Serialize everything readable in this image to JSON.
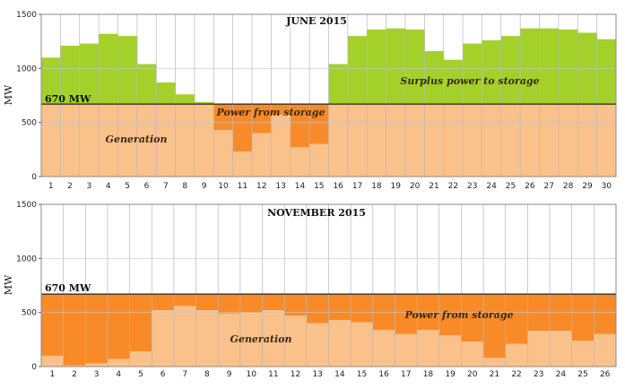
{
  "chart_data": [
    {
      "type": "bar",
      "title": "JUNE 2015",
      "ylabel": "MW",
      "xlabel": "",
      "ylim": [
        0,
        1500
      ],
      "yticks": [
        0,
        500,
        1000,
        1500
      ],
      "baseline_value": 670,
      "baseline_label": "670 MW",
      "categories": [
        "1",
        "2",
        "3",
        "4",
        "5",
        "6",
        "7",
        "8",
        "9",
        "10",
        "11",
        "12",
        "13",
        "14",
        "15",
        "16",
        "17",
        "18",
        "19",
        "20",
        "21",
        "22",
        "23",
        "24",
        "25",
        "26",
        "27",
        "28",
        "29",
        "30"
      ],
      "values": [
        1100,
        1210,
        1230,
        1320,
        1300,
        1040,
        870,
        760,
        690,
        430,
        230,
        400,
        570,
        270,
        300,
        1040,
        1300,
        1360,
        1370,
        1360,
        1160,
        1080,
        1230,
        1260,
        1300,
        1370,
        1370,
        1360,
        1330,
        1270
      ],
      "series_names": {
        "surplus": "Surplus power to storage",
        "storage": "Power from storage",
        "generation": "Generation"
      },
      "annotations": [
        "Surplus power to storage",
        "Power from storage",
        "Generation"
      ],
      "colors": {
        "surplus": "#a3d12a",
        "generation": "#fac18a",
        "storage": "#f98a28"
      }
    },
    {
      "type": "bar",
      "title": "NOVEMBER 2015",
      "ylabel": "MW",
      "xlabel": "",
      "ylim": [
        0,
        1500
      ],
      "yticks": [
        0,
        500,
        1000,
        1500
      ],
      "baseline_value": 670,
      "baseline_label": "670 MW",
      "categories": [
        "1",
        "2",
        "3",
        "4",
        "5",
        "6",
        "7",
        "8",
        "9",
        "10",
        "11",
        "12",
        "13",
        "14",
        "15",
        "16",
        "17",
        "18",
        "19",
        "20",
        "21",
        "22",
        "23",
        "24",
        "25",
        "26"
      ],
      "values": [
        100,
        10,
        30,
        70,
        140,
        520,
        560,
        520,
        490,
        500,
        520,
        470,
        400,
        430,
        410,
        340,
        300,
        340,
        290,
        230,
        80,
        210,
        330,
        330,
        240,
        300
      ],
      "series_names": {
        "storage": "Power from storage",
        "generation": "Generation"
      },
      "annotations": [
        "Power from storage",
        "Generation"
      ],
      "colors": {
        "surplus": "#a3d12a",
        "generation": "#fac18a",
        "storage": "#f98a28"
      }
    }
  ]
}
